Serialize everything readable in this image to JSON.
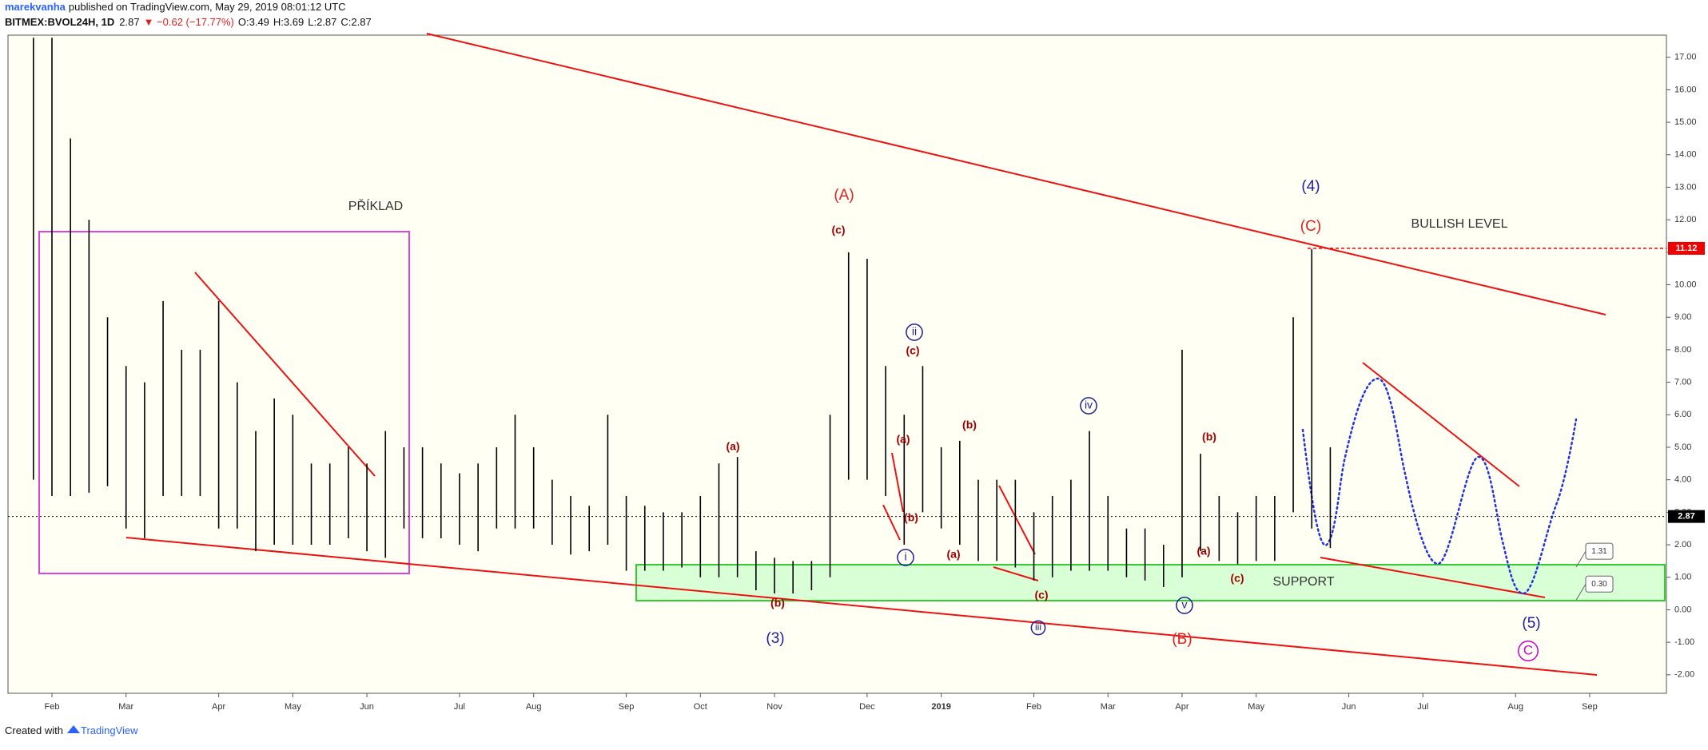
{
  "header": {
    "author": "marekvanha",
    "published": "published on TradingView.com, May 29, 2019 08:01:12 UTC",
    "symbol": "BITMEX:BVOL24H, 1D",
    "last": "2.87",
    "change": "▼ −0.62 (−17.77%)",
    "ohlc": [
      "O:3.49",
      "H:3.69",
      "L:2.87",
      "C:2.87"
    ]
  },
  "footer": {
    "created": "Created with",
    "brand": "TradingView"
  },
  "chart_data": {
    "type": "ohlc",
    "color": "#000000",
    "categories": [
      null,
      "Feb",
      null,
      null,
      null,
      "Mar",
      null,
      null,
      null,
      null,
      "Apr",
      null,
      null,
      null,
      "May",
      null,
      null,
      null,
      "Jun",
      null,
      null,
      null,
      null,
      "Jul",
      null,
      null,
      null,
      "Aug",
      null,
      null,
      null,
      null,
      "Sep",
      null,
      null,
      null,
      "Oct",
      null,
      null,
      null,
      "Nov",
      null,
      null,
      null,
      null,
      "Dec",
      null,
      null,
      null,
      "2019",
      null,
      null,
      null,
      null,
      "Feb",
      null,
      null,
      null,
      "Mar",
      null,
      null,
      null,
      "Apr",
      null,
      null,
      null,
      "May",
      null,
      null,
      null,
      null,
      "Jun",
      null,
      null,
      null,
      "Jul",
      null,
      null,
      null,
      null,
      "Aug",
      null,
      null,
      null,
      "Sep",
      null,
      null
    ],
    "series": [
      {
        "name": "High",
        "values": [
          17.6,
          17.6,
          14.5,
          12,
          9,
          7.5,
          7,
          9.5,
          8,
          8,
          9.5,
          7,
          5.5,
          6.5,
          6,
          4.5,
          4.5,
          5,
          4.5,
          5.5,
          5,
          5,
          4.5,
          4.2,
          4.5,
          5,
          6,
          5,
          4,
          3.5,
          3.2,
          6,
          3.5,
          3.2,
          3,
          3,
          3.5,
          4.5,
          4.7,
          1.8,
          1.6,
          1.5,
          1.5,
          6,
          11,
          10.8,
          7.5,
          6,
          7.5,
          5,
          5.2,
          4,
          4,
          4,
          3,
          3.5,
          4,
          5.5,
          3.5,
          2.5,
          2.5,
          2,
          8,
          4.8,
          3.5,
          3,
          3.5,
          3.5,
          9,
          11.1,
          5,
          null,
          null,
          null,
          null,
          null,
          null,
          null,
          null,
          null,
          null,
          null,
          null,
          null,
          null,
          null,
          null
        ]
      },
      {
        "name": "Low",
        "values": [
          4,
          3.5,
          3.5,
          3.6,
          3.8,
          2.5,
          2.2,
          3.5,
          3.5,
          3.5,
          2.5,
          2.5,
          1.8,
          2,
          2,
          2,
          2,
          2.2,
          1.8,
          1.6,
          2.5,
          2.2,
          2.2,
          2,
          1.8,
          2.5,
          2.5,
          2.5,
          2,
          1.7,
          1.8,
          2,
          1.2,
          1.2,
          1.2,
          1.3,
          1,
          1,
          1,
          0.6,
          0.5,
          0.5,
          0.6,
          1,
          4,
          4,
          3.5,
          2,
          3,
          2.5,
          2,
          1.5,
          1.5,
          1.3,
          0.9,
          1,
          1.2,
          1.2,
          1.2,
          1,
          0.9,
          0.7,
          1,
          1.8,
          1.5,
          1.4,
          1.5,
          1.5,
          3,
          2.5,
          1.9,
          null,
          null,
          null,
          null,
          null,
          null,
          null,
          null,
          null,
          null,
          null,
          null,
          null,
          null,
          null,
          null
        ]
      }
    ],
    "ylim": [
      -2.57,
      17.68
    ],
    "yticks": [
      {
        "value": 17,
        "label": "17.00"
      },
      {
        "value": 16,
        "label": "16.00"
      },
      {
        "value": 15,
        "label": "15.00"
      },
      {
        "value": 14,
        "label": "14.00"
      },
      {
        "value": 13,
        "label": "13.00"
      },
      {
        "value": 12,
        "label": "12.00"
      },
      {
        "value": 11,
        "label": "11.00"
      },
      {
        "value": 10,
        "label": "10.00"
      },
      {
        "value": 9,
        "label": "9.00"
      },
      {
        "value": 8,
        "label": "8.00"
      },
      {
        "value": 7,
        "label": "7.00"
      },
      {
        "value": 6,
        "label": "6.00"
      },
      {
        "value": 5,
        "label": "5.00"
      },
      {
        "value": 4,
        "label": "4.00"
      },
      {
        "value": 3,
        "label": "3.00"
      },
      {
        "value": 2,
        "label": "2.00"
      },
      {
        "value": 1,
        "label": "1.00"
      },
      {
        "value": 0,
        "label": "0.00"
      },
      {
        "value": -1,
        "label": "-1.00"
      },
      {
        "value": -2,
        "label": "-2.00"
      }
    ],
    "price_lines": [
      {
        "value": 11.12,
        "label": "11.12",
        "color": "#f00000"
      },
      {
        "value": 2.87,
        "label": "2.87",
        "color": "#000000"
      }
    ],
    "callouts": [
      {
        "value": 1.31,
        "label": "1.31"
      },
      {
        "value": 0.3,
        "label": "0.30"
      }
    ],
    "annotations": [
      {
        "text": "PŘÍKLAD",
        "color": "#333333"
      },
      {
        "text": "(A)",
        "color": "#e02020"
      },
      {
        "text": "(c)",
        "color": "#a00000"
      },
      {
        "text": "(4)",
        "color": "#1c1c9c"
      },
      {
        "text": "(C)",
        "color": "#e02020"
      },
      {
        "text": "BULLISH LEVEL",
        "color": "#333333"
      },
      {
        "text": "ii",
        "color": "#1c1c9c",
        "circled": true
      },
      {
        "text": "(c)",
        "color": "#a00000"
      },
      {
        "text": "(a)",
        "color": "#a00000"
      },
      {
        "text": "(b)",
        "color": "#a00000"
      },
      {
        "text": "iv",
        "color": "#1c1c9c",
        "circled": true
      },
      {
        "text": "(b)",
        "color": "#a00000"
      },
      {
        "text": "(a)",
        "color": "#a00000"
      },
      {
        "text": "(b)",
        "color": "#a00000"
      },
      {
        "text": "i",
        "color": "#1c1c9c",
        "circled": true
      },
      {
        "text": "(a)",
        "color": "#a00000"
      },
      {
        "text": "(a)",
        "color": "#a00000"
      },
      {
        "text": "(c)",
        "color": "#a00000"
      },
      {
        "text": "(c)",
        "color": "#a00000"
      },
      {
        "text": "SUPPORT",
        "color": "#333333"
      },
      {
        "text": "(b)",
        "color": "#a00000"
      },
      {
        "text": "v",
        "color": "#1c1c9c",
        "circled": true
      },
      {
        "text": "iii",
        "color": "#1c1c9c",
        "circled": true
      },
      {
        "text": "(3)",
        "color": "#1c1c9c"
      },
      {
        "text": "(B)",
        "color": "#e02020"
      },
      {
        "text": "(5)",
        "color": "#1c1c9c"
      },
      {
        "text": "C",
        "color": "#cc00cc",
        "circled": true
      }
    ]
  }
}
